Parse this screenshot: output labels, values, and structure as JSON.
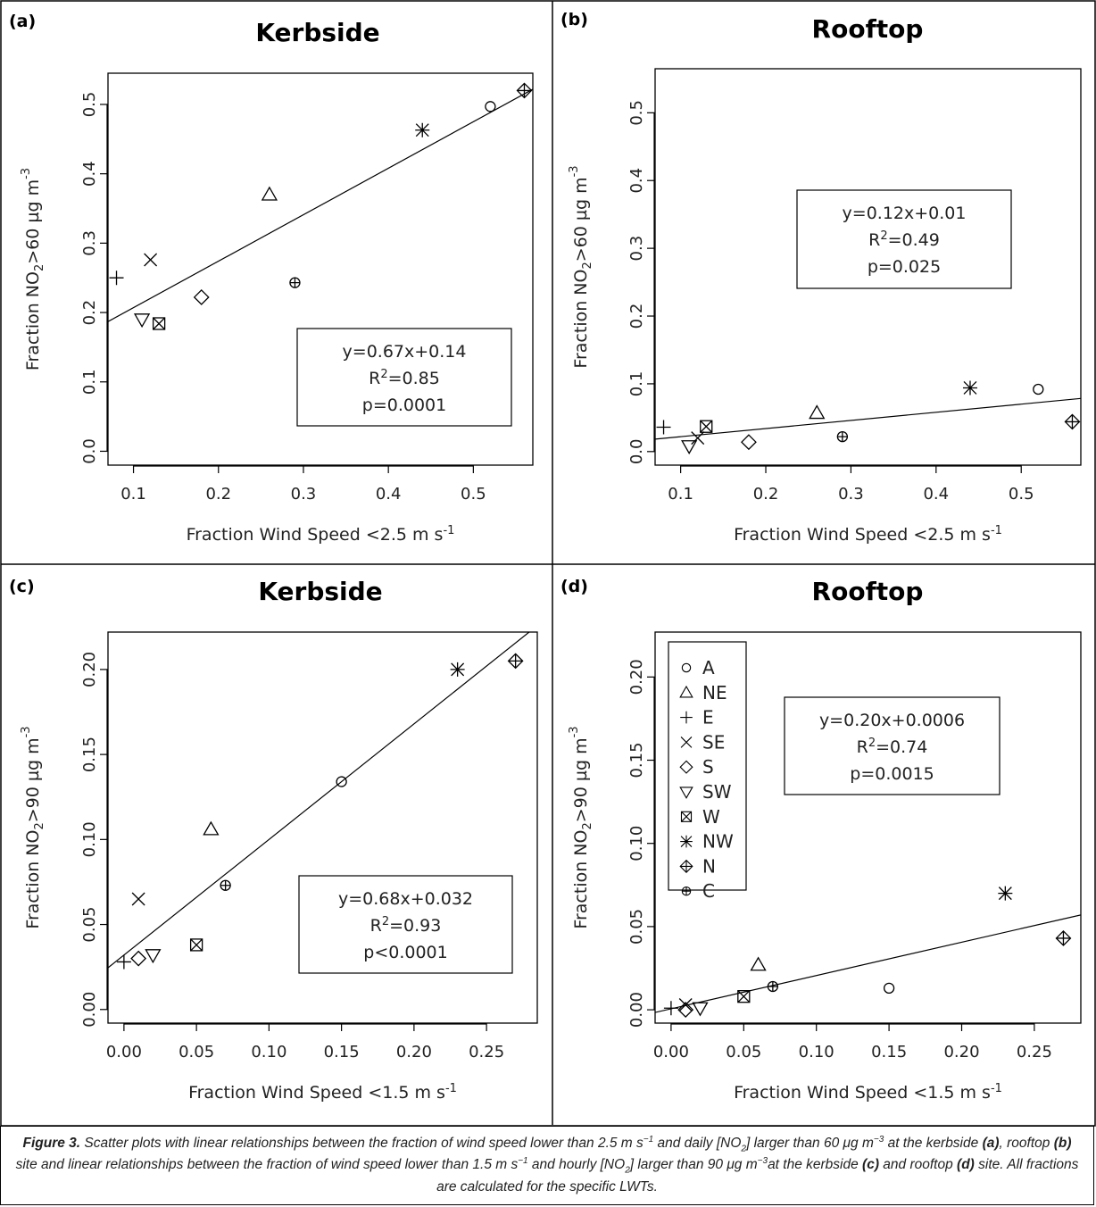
{
  "figure": {
    "caption": {
      "label": "Figure 3.",
      "segments": [
        {
          "text": " Scatter plots with linear relationships between the fraction of wind speed lower than 2.5 m s",
          "bold": false
        },
        {
          "text": "−1",
          "bold": false,
          "sup": true
        },
        {
          "text": " and daily [NO",
          "bold": false
        },
        {
          "text": "2",
          "bold": false,
          "sub": true
        },
        {
          "text": "] larger than 60 μg m",
          "bold": false
        },
        {
          "text": "−3",
          "bold": false,
          "sup": true
        },
        {
          "text": " at the kerbside ",
          "bold": false
        },
        {
          "text": "(a)",
          "bold": true
        },
        {
          "text": ", rooftop ",
          "bold": false
        },
        {
          "text": "(b)",
          "bold": true
        },
        {
          "text": " site and linear relationships between the fraction of wind speed lower than 1.5 m s",
          "bold": false
        },
        {
          "text": "−1",
          "bold": false,
          "sup": true
        },
        {
          "text": " and hourly [NO",
          "bold": false
        },
        {
          "text": "2",
          "bold": false,
          "sub": true
        },
        {
          "text": "] larger than 90 μg m",
          "bold": false
        },
        {
          "text": "−3",
          "bold": false,
          "sup": true
        },
        {
          "text": "at the kerbside ",
          "bold": false
        },
        {
          "text": "(c)",
          "bold": true
        },
        {
          "text": " and rooftop ",
          "bold": false
        },
        {
          "text": "(d)",
          "bold": true
        },
        {
          "text": " site. All fractions are calculated for the specific LWTs.",
          "bold": false
        }
      ]
    },
    "legend": {
      "placement": "top-left of panel (d)",
      "entries": [
        {
          "label": "A",
          "marker": "circle"
        },
        {
          "label": "NE",
          "marker": "triangle-up"
        },
        {
          "label": "E",
          "marker": "plus"
        },
        {
          "label": "SE",
          "marker": "cross"
        },
        {
          "label": "S",
          "marker": "diamond"
        },
        {
          "label": "SW",
          "marker": "triangle-down"
        },
        {
          "label": "W",
          "marker": "square-cross"
        },
        {
          "label": "NW",
          "marker": "asterisk"
        },
        {
          "label": "N",
          "marker": "diamond-plus"
        },
        {
          "label": "C",
          "marker": "circle-plus"
        }
      ]
    }
  },
  "chart_data": [
    {
      "type": "scatter",
      "panel_label": "(a)",
      "title": "Kerbside",
      "xlabel": "Fraction Wind Speed <2.5 m s",
      "xlabel_sup": "-1",
      "ylabel_parts": [
        "Fraction NO",
        "2",
        ">60 µg m",
        "-3"
      ],
      "xlim": [
        0.07,
        0.57
      ],
      "ylim": [
        -0.02,
        0.545
      ],
      "xticks": [
        0.1,
        0.2,
        0.3,
        0.4,
        0.5
      ],
      "xtick_labels": [
        "0.1",
        "0.2",
        "0.3",
        "0.4",
        "0.5"
      ],
      "yticks": [
        0.0,
        0.1,
        0.2,
        0.3,
        0.4,
        0.5
      ],
      "ytick_labels": [
        "0.0",
        "0.1",
        "0.2",
        "0.3",
        "0.4",
        "0.5"
      ],
      "grid": false,
      "points": [
        {
          "label": "A",
          "x": 0.52,
          "y": 0.497
        },
        {
          "label": "NE",
          "x": 0.26,
          "y": 0.37
        },
        {
          "label": "E",
          "x": 0.08,
          "y": 0.25
        },
        {
          "label": "SE",
          "x": 0.12,
          "y": 0.276
        },
        {
          "label": "S",
          "x": 0.18,
          "y": 0.222
        },
        {
          "label": "SW",
          "x": 0.11,
          "y": 0.19
        },
        {
          "label": "W",
          "x": 0.13,
          "y": 0.184
        },
        {
          "label": "NW",
          "x": 0.44,
          "y": 0.463
        },
        {
          "label": "N",
          "x": 0.56,
          "y": 0.52
        },
        {
          "label": "C",
          "x": 0.29,
          "y": 0.243
        }
      ],
      "fit": {
        "slope": 0.67,
        "intercept": 0.14
      },
      "annotation": {
        "equation": "y=0.67x+0.14",
        "r2_value": "=0.85",
        "p": "p=0.0001",
        "placement": "lower-right"
      }
    },
    {
      "type": "scatter",
      "panel_label": "(b)",
      "title": "Rooftop",
      "xlabel": "Fraction Wind Speed <2.5 m s",
      "xlabel_sup": "-1",
      "ylabel_parts": [
        "Fraction NO",
        "2",
        ">60 µg m",
        "-3"
      ],
      "xlim": [
        0.07,
        0.57
      ],
      "ylim": [
        -0.02,
        0.565
      ],
      "xticks": [
        0.1,
        0.2,
        0.3,
        0.4,
        0.5
      ],
      "xtick_labels": [
        "0.1",
        "0.2",
        "0.3",
        "0.4",
        "0.5"
      ],
      "yticks": [
        0.0,
        0.1,
        0.2,
        0.3,
        0.4,
        0.5
      ],
      "ytick_labels": [
        "0.0",
        "0.1",
        "0.2",
        "0.3",
        "0.4",
        "0.5"
      ],
      "grid": false,
      "points": [
        {
          "label": "A",
          "x": 0.52,
          "y": 0.092
        },
        {
          "label": "NE",
          "x": 0.26,
          "y": 0.057
        },
        {
          "label": "E",
          "x": 0.08,
          "y": 0.036
        },
        {
          "label": "SE",
          "x": 0.12,
          "y": 0.02
        },
        {
          "label": "S",
          "x": 0.18,
          "y": 0.014
        },
        {
          "label": "SW",
          "x": 0.11,
          "y": 0.008
        },
        {
          "label": "W",
          "x": 0.13,
          "y": 0.037
        },
        {
          "label": "NW",
          "x": 0.44,
          "y": 0.094
        },
        {
          "label": "N",
          "x": 0.56,
          "y": 0.044
        },
        {
          "label": "C",
          "x": 0.29,
          "y": 0.022
        }
      ],
      "fit": {
        "slope": 0.12,
        "intercept": 0.01
      },
      "annotation": {
        "equation": "y=0.12x+0.01",
        "r2_value": "=0.49",
        "p": "p=0.025",
        "placement": "upper-center"
      }
    },
    {
      "type": "scatter",
      "panel_label": "(c)",
      "title": "Kerbside",
      "xlabel": "Fraction Wind Speed <1.5 m s",
      "xlabel_sup": "-1",
      "ylabel_parts": [
        "Fraction NO",
        "2",
        ">90 µg m",
        "-3"
      ],
      "xlim": [
        -0.011,
        0.285
      ],
      "ylim": [
        -0.008,
        0.222
      ],
      "xticks": [
        0.0,
        0.05,
        0.1,
        0.15,
        0.2,
        0.25
      ],
      "xtick_labels": [
        "0.00",
        "0.05",
        "0.10",
        "0.15",
        "0.20",
        "0.25"
      ],
      "yticks": [
        0.0,
        0.05,
        0.1,
        0.15,
        0.2
      ],
      "ytick_labels": [
        "0.00",
        "0.05",
        "0.10",
        "0.15",
        "0.20"
      ],
      "grid": false,
      "points": [
        {
          "label": "A",
          "x": 0.15,
          "y": 0.134
        },
        {
          "label": "NE",
          "x": 0.06,
          "y": 0.106
        },
        {
          "label": "E",
          "x": 0.0,
          "y": 0.028
        },
        {
          "label": "SE",
          "x": 0.01,
          "y": 0.065
        },
        {
          "label": "S",
          "x": 0.01,
          "y": 0.03
        },
        {
          "label": "SW",
          "x": 0.02,
          "y": 0.032
        },
        {
          "label": "W",
          "x": 0.05,
          "y": 0.038
        },
        {
          "label": "NW",
          "x": 0.23,
          "y": 0.2
        },
        {
          "label": "N",
          "x": 0.27,
          "y": 0.205
        },
        {
          "label": "C",
          "x": 0.07,
          "y": 0.073
        }
      ],
      "fit": {
        "slope": 0.68,
        "intercept": 0.032
      },
      "annotation": {
        "equation": "y=0.68x+0.032",
        "r2_value": "=0.93",
        "p": "p<0.0001",
        "placement": "lower-right"
      }
    },
    {
      "type": "scatter",
      "panel_label": "(d)",
      "title": "Rooftop",
      "xlabel": "Fraction Wind Speed <1.5 m s",
      "xlabel_sup": "-1",
      "ylabel_parts": [
        "Fraction NO",
        "2",
        ">90 µg m",
        "-3"
      ],
      "xlim": [
        -0.011,
        0.282
      ],
      "ylim": [
        -0.008,
        0.227
      ],
      "xticks": [
        0.0,
        0.05,
        0.1,
        0.15,
        0.2,
        0.25
      ],
      "xtick_labels": [
        "0.00",
        "0.05",
        "0.10",
        "0.15",
        "0.20",
        "0.25"
      ],
      "yticks": [
        0.0,
        0.05,
        0.1,
        0.15,
        0.2
      ],
      "ytick_labels": [
        "0.00",
        "0.05",
        "0.10",
        "0.15",
        "0.20"
      ],
      "grid": false,
      "points": [
        {
          "label": "A",
          "x": 0.15,
          "y": 0.013
        },
        {
          "label": "NE",
          "x": 0.06,
          "y": 0.027
        },
        {
          "label": "E",
          "x": 0.0,
          "y": 0.001
        },
        {
          "label": "SE",
          "x": 0.01,
          "y": 0.003
        },
        {
          "label": "S",
          "x": 0.01,
          "y": 0.0
        },
        {
          "label": "SW",
          "x": 0.02,
          "y": 0.001
        },
        {
          "label": "W",
          "x": 0.05,
          "y": 0.008
        },
        {
          "label": "NW",
          "x": 0.23,
          "y": 0.07
        },
        {
          "label": "N",
          "x": 0.27,
          "y": 0.043
        },
        {
          "label": "C",
          "x": 0.07,
          "y": 0.014
        }
      ],
      "fit": {
        "slope": 0.2,
        "intercept": 0.0006
      },
      "annotation": {
        "equation": "y=0.20x+0.0006",
        "r2_value": "=0.74",
        "p": "p=0.0015",
        "placement": "upper-center"
      }
    }
  ]
}
